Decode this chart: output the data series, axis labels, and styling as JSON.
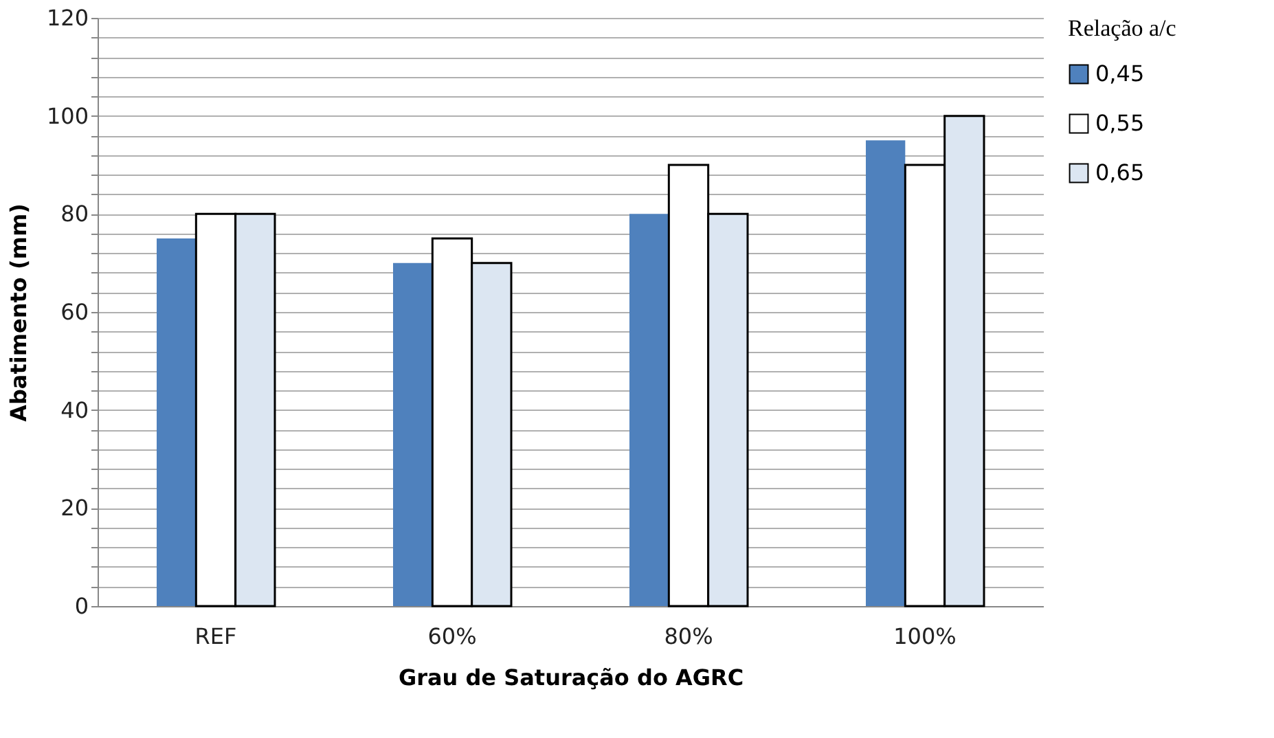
{
  "chart_data": {
    "type": "bar",
    "xlabel": "Grau de Saturação do AGRC",
    "ylabel": "Abatimento (mm)",
    "legend_title": "Relação a/c",
    "categories": [
      "REF",
      "60%",
      "80%",
      "100%"
    ],
    "series": [
      {
        "name": "0,45",
        "color": "#4f81bd",
        "values": [
          75,
          70,
          80,
          95
        ]
      },
      {
        "name": "0,55",
        "color": "#ffffff",
        "values": [
          80,
          75,
          90,
          90
        ]
      },
      {
        "name": "0,65",
        "color": "#dce6f2",
        "values": [
          80,
          70,
          80,
          100
        ]
      }
    ],
    "ylim": [
      0,
      120
    ],
    "yticks": [
      0,
      {
        "value": 4,
        "label": null
      },
      {
        "value": 8,
        "label": null
      },
      {
        "value": 12,
        "label": null
      },
      {
        "value": 16,
        "label": null
      },
      20,
      {
        "value": 24,
        "label": null
      },
      {
        "value": 28,
        "label": null
      },
      {
        "value": 32,
        "label": null
      },
      {
        "value": 36,
        "label": null
      },
      40,
      {
        "value": 44,
        "label": null
      },
      {
        "value": 48,
        "label": null
      },
      {
        "value": 52,
        "label": null
      },
      {
        "value": 56,
        "label": null
      },
      60,
      {
        "value": 64,
        "label": null
      },
      {
        "value": 68,
        "label": null
      },
      {
        "value": 72,
        "label": null
      },
      {
        "value": 76,
        "label": null
      },
      80,
      {
        "value": 84,
        "label": null
      },
      {
        "value": 88,
        "label": null
      },
      {
        "value": 92,
        "label": null
      },
      {
        "value": 96,
        "label": null
      },
      100,
      {
        "value": 104,
        "label": null
      },
      {
        "value": 108,
        "label": null
      },
      {
        "value": 112,
        "label": null
      },
      {
        "value": 116,
        "label": null
      },
      120
    ],
    "grid": "y",
    "legend": "right"
  }
}
